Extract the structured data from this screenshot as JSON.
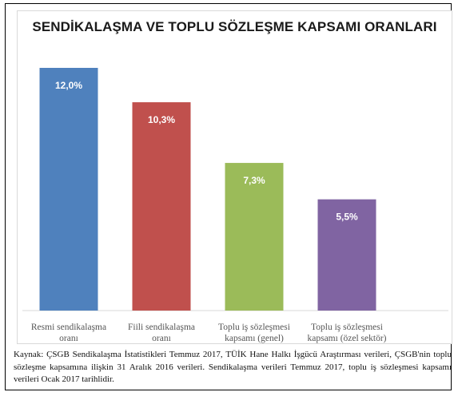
{
  "chart_data": {
    "type": "bar",
    "title": "SENDİKALAŞMA VE TOPLU SÖZLEŞME KAPSAMI ORANLARI",
    "categories": [
      [
        "Resmi sendikalaşma",
        "oranı"
      ],
      [
        "Fiili sendikalaşma",
        "oranı"
      ],
      [
        "Toplu iş sözleşmesi",
        "kapsamı (genel)"
      ],
      [
        "Toplu iş sözleşmesi",
        "kapsamı (özel sektör)"
      ]
    ],
    "values": [
      12.0,
      10.3,
      7.3,
      5.5
    ],
    "data_labels": [
      "12,0%",
      "10,3%",
      "7,3%",
      "5,5%"
    ],
    "colors": [
      "#4f81bd",
      "#c0504d",
      "#9bbb59",
      "#8064a2"
    ],
    "ylim": [
      0,
      12.0
    ],
    "xlabel": "",
    "ylabel": "",
    "grid": false,
    "legend": "none"
  },
  "source_text": "Kaynak: ÇSGB Sendikalaşma İstatistikleri Temmuz 2017, TÜİK Hane Halkı İşgücü Araştırması verileri, ÇSGB'nin toplu sözleşme kapsamına ilişkin 31 Aralık 2016 verileri. Sendikalaşma verileri Temmuz 2017, toplu iş sözleşmesi kapsamı verileri Ocak 2017 tarihlidir."
}
